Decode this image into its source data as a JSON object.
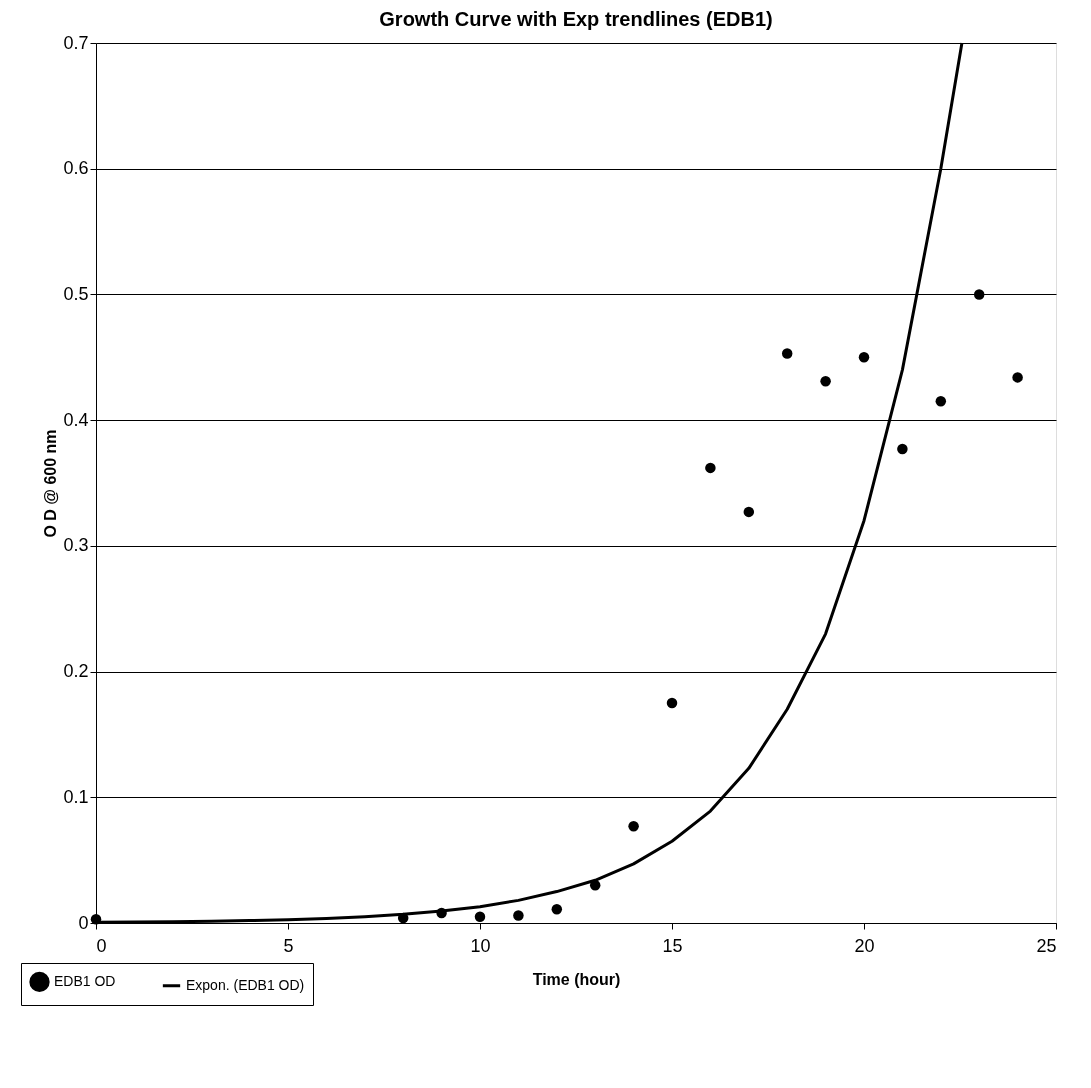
{
  "chart_data": {
    "type": "scatter",
    "title": "Growth Curve with Exp trendlines (EDB1)",
    "xlabel": "Time (hour)",
    "ylabel": "O D @ 600 nm",
    "xlim": [
      0,
      25
    ],
    "xticks": [
      0,
      5,
      10,
      15,
      20,
      25
    ],
    "ylim": [
      0,
      0.7
    ],
    "yticks": [
      0,
      0.1,
      0.2,
      0.3,
      0.4,
      0.5,
      0.6,
      0.7
    ],
    "grid": "y",
    "legend": "bottom left",
    "series": [
      {
        "name": "EDB1 OD",
        "marker": "circle",
        "color": "#000000",
        "x": [
          0,
          8,
          9,
          10,
          11,
          12,
          13,
          14,
          15,
          16,
          17,
          18,
          19,
          20,
          21,
          22,
          23,
          24
        ],
        "values": [
          0.003,
          0.004,
          0.008,
          0.005,
          0.006,
          0.011,
          0.03,
          0.077,
          0.175,
          0.362,
          0.327,
          0.453,
          0.431,
          0.45,
          0.377,
          0.415,
          0.5,
          0.434
        ]
      },
      {
        "name": "Expon. (EDB1 OD)",
        "type": "line",
        "line_style": "solid",
        "color": "#000000",
        "x": [
          0,
          1,
          2,
          3,
          4,
          5,
          6,
          7,
          8,
          9,
          10,
          11,
          12,
          13,
          14,
          15,
          16,
          17,
          18,
          19,
          20,
          21,
          22,
          22.55
        ],
        "values": [
          0.0005,
          0.0007,
          0.001,
          0.0014,
          0.0019,
          0.0026,
          0.0036,
          0.005,
          0.0069,
          0.0095,
          0.013,
          0.018,
          0.025,
          0.034,
          0.047,
          0.065,
          0.089,
          0.123,
          0.17,
          0.23,
          0.32,
          0.44,
          0.6,
          0.7
        ]
      }
    ]
  }
}
